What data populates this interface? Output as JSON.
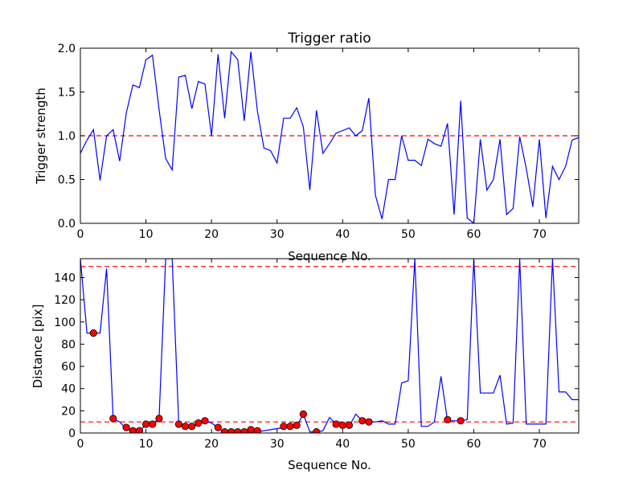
{
  "figure": {
    "background": "#ffffff"
  },
  "chart_data": [
    {
      "type": "line",
      "title": "Trigger ratio",
      "xlabel": "Sequence No.",
      "ylabel": "Trigger strength",
      "xlim": [
        0,
        76
      ],
      "ylim": [
        0,
        2.0
      ],
      "xticks": [
        0,
        10,
        20,
        30,
        40,
        50,
        60,
        70
      ],
      "yticks": [
        0.0,
        0.5,
        1.0,
        1.5,
        2.0
      ],
      "xtick_labels": [
        "0",
        "10",
        "20",
        "30",
        "40",
        "50",
        "60",
        "70"
      ],
      "ytick_labels": [
        "0.0",
        "0.5",
        "1.0",
        "1.5",
        "2.0"
      ],
      "grid": false,
      "colors": {
        "line": "#0000ff",
        "threshold": "#ff0000"
      },
      "threshold_lines": [
        1.0
      ],
      "series": [
        {
          "x": [
            0,
            1,
            2,
            3,
            4,
            5,
            6,
            7,
            8,
            9,
            10,
            11,
            12,
            13,
            14,
            15,
            16,
            17,
            18,
            19,
            20,
            21,
            22,
            23,
            24,
            25,
            26,
            27,
            28,
            29,
            30,
            31,
            32,
            33,
            34,
            35,
            36,
            37,
            38,
            39,
            40,
            41,
            42,
            43,
            44,
            45,
            46,
            47,
            48,
            49,
            50,
            51,
            52,
            53,
            54,
            55,
            56,
            57,
            58,
            59,
            60,
            61,
            62,
            63,
            64,
            65,
            66,
            67,
            68,
            69,
            70,
            71,
            72,
            73,
            74,
            75,
            76
          ],
          "values": [
            0.8,
            0.95,
            1.07,
            0.49,
            1.0,
            1.07,
            0.71,
            1.26,
            1.58,
            1.55,
            1.87,
            1.92,
            1.3,
            0.74,
            0.61,
            1.67,
            1.69,
            1.31,
            1.62,
            1.59,
            1.0,
            1.93,
            1.2,
            1.96,
            1.87,
            1.17,
            1.96,
            1.28,
            0.86,
            0.83,
            0.69,
            1.2,
            1.2,
            1.32,
            1.1,
            0.38,
            1.29,
            0.8,
            0.91,
            1.03,
            1.06,
            1.09,
            1.0,
            1.06,
            1.43,
            0.32,
            0.05,
            0.5,
            0.5,
            1.0,
            0.72,
            0.72,
            0.66,
            0.96,
            0.91,
            0.88,
            1.14,
            0.1,
            1.4,
            0.06,
            0.0,
            0.96,
            0.38,
            0.5,
            0.96,
            0.1,
            0.17,
            0.99,
            0.63,
            0.19,
            0.96,
            0.06,
            0.65,
            0.5,
            0.65,
            0.95,
            0.98
          ]
        }
      ]
    },
    {
      "type": "line",
      "title": "",
      "xlabel": "Sequence No.",
      "ylabel": "Distance [pix]",
      "xlim": [
        0,
        76
      ],
      "ylim": [
        0,
        157
      ],
      "xticks": [
        0,
        10,
        20,
        30,
        40,
        50,
        60,
        70
      ],
      "yticks": [
        0,
        20,
        40,
        60,
        80,
        100,
        120,
        140
      ],
      "xtick_labels": [
        "0",
        "10",
        "20",
        "30",
        "40",
        "50",
        "60",
        "70"
      ],
      "ytick_labels": [
        "0",
        "20",
        "40",
        "60",
        "80",
        "100",
        "120",
        "140"
      ],
      "grid": false,
      "colors": {
        "line": "#0000ff",
        "threshold": "#ff0000",
        "marker": "#ff0000"
      },
      "threshold_lines": [
        150,
        10
      ],
      "series": [
        {
          "x": [
            0,
            1,
            2,
            3,
            4,
            5,
            6,
            7,
            8,
            9,
            10,
            11,
            12,
            13,
            14,
            15,
            16,
            17,
            18,
            19,
            20,
            21,
            22,
            23,
            24,
            25,
            26,
            27,
            28,
            29,
            30,
            31,
            32,
            33,
            34,
            35,
            36,
            37,
            38,
            39,
            40,
            41,
            42,
            43,
            44,
            45,
            46,
            47,
            48,
            49,
            50,
            51,
            52,
            53,
            54,
            55,
            56,
            57,
            58,
            59,
            60,
            61,
            62,
            63,
            64,
            65,
            66,
            67,
            68,
            69,
            70,
            71,
            72,
            73,
            74,
            75,
            76
          ],
          "values": [
            157,
            90,
            90,
            90,
            148,
            13,
            10,
            4,
            1,
            1,
            8,
            8,
            13,
            157,
            157,
            8,
            5,
            5,
            8,
            11,
            9,
            5,
            0,
            0,
            0,
            0,
            2,
            1,
            2,
            3,
            4,
            5,
            5,
            6,
            17,
            1,
            1,
            2,
            14,
            8,
            6,
            6,
            17,
            11,
            10,
            10,
            11,
            8,
            8,
            45,
            47,
            157,
            6,
            6,
            10,
            51,
            11,
            11,
            11,
            12,
            157,
            36,
            36,
            36,
            52,
            8,
            9,
            157,
            8,
            8,
            8,
            8,
            157,
            37,
            37,
            30,
            30
          ]
        }
      ],
      "markers": {
        "x": [
          2,
          5,
          7,
          8,
          9,
          10,
          11,
          12,
          15,
          16,
          17,
          18,
          19,
          21,
          22,
          23,
          24,
          25,
          26,
          27,
          31,
          32,
          33,
          34,
          36,
          39,
          40,
          41,
          43,
          44,
          56,
          58
        ],
        "y": [
          90,
          13,
          5,
          2,
          2,
          8,
          8,
          13,
          8,
          6,
          6,
          9,
          11,
          5,
          1,
          1,
          1,
          1,
          3,
          2,
          6,
          6,
          7,
          17,
          1,
          8,
          7,
          7,
          11,
          10,
          12,
          11
        ]
      }
    }
  ]
}
